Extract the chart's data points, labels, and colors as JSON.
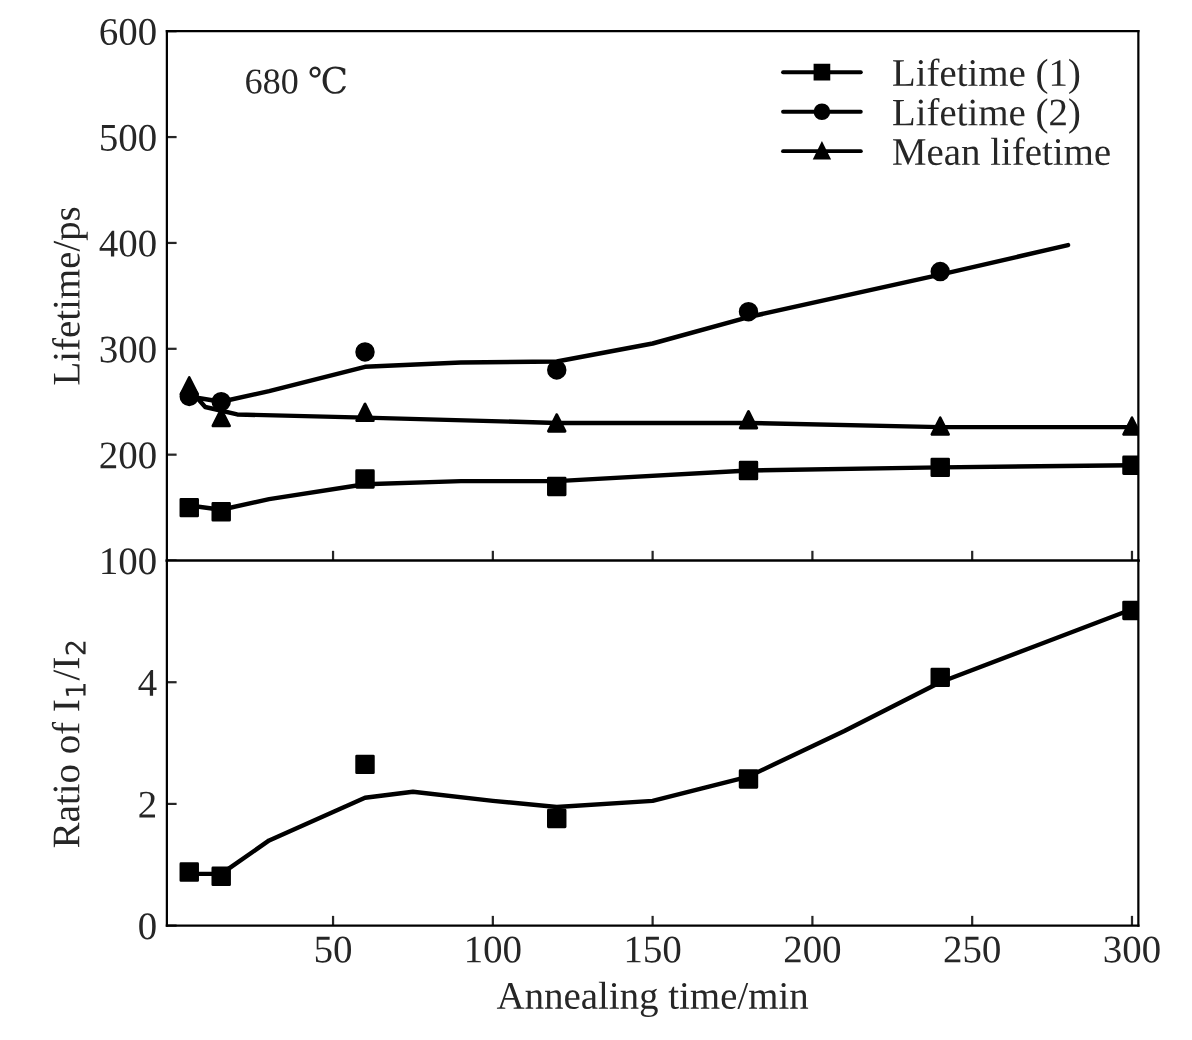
{
  "chart_data": [
    {
      "type": "scatter",
      "ylabel": "Lifetime/ps",
      "annotations": [
        "680 ℃"
      ],
      "xlim": [
        -2,
        302
      ],
      "xticks": [
        50,
        100,
        150,
        200,
        250,
        300
      ],
      "ylim": [
        100,
        600
      ],
      "yticks": [
        100,
        200,
        300,
        400,
        500,
        600
      ],
      "tick_labels": "y",
      "legend": "top right",
      "grid": false,
      "series": [
        {
          "name": "Lifetime (1)",
          "marker": "square",
          "color": "#000000",
          "x": [
            5,
            15,
            60,
            120,
            180,
            240,
            300
          ],
          "values": [
            150,
            146,
            177,
            170,
            185,
            188,
            190
          ]
        },
        {
          "name": "Lifetime (2)",
          "marker": "circle",
          "color": "#000000",
          "x": [
            5,
            15,
            60,
            120,
            180,
            240
          ],
          "values": [
            255,
            250,
            297,
            280,
            335,
            373
          ]
        },
        {
          "name": "Mean lifetime",
          "marker": "triangle",
          "color": "#000000",
          "x": [
            5,
            15,
            60,
            120,
            180,
            240,
            300
          ],
          "values": [
            265,
            235,
            240,
            230,
            233,
            227,
            227
          ]
        },
        {
          "type": "line",
          "marker": "none",
          "line_style": "solid",
          "color": "#000000",
          "x": [
            5,
            15,
            30,
            60,
            90,
            120,
            180,
            240,
            300
          ],
          "values": [
            152,
            148,
            158,
            172,
            175,
            175,
            185,
            188,
            190
          ]
        },
        {
          "type": "line",
          "marker": "none",
          "line_style": "solid",
          "color": "#000000",
          "x": [
            5,
            15,
            30,
            60,
            90,
            120,
            150,
            180,
            240,
            280
          ],
          "values": [
            255,
            250,
            260,
            283,
            287,
            288,
            305,
            330,
            370,
            398
          ]
        },
        {
          "type": "line",
          "marker": "none",
          "line_style": "solid",
          "color": "#000000",
          "x": [
            5,
            10,
            20,
            60,
            120,
            180,
            240,
            300
          ],
          "values": [
            262,
            245,
            238,
            235,
            230,
            230,
            226,
            226
          ]
        }
      ]
    },
    {
      "type": "scatter",
      "xlabel": "Annealing time/min",
      "ylabel": "Ratio of I$_{1}$/I$_{2}$",
      "xlim": [
        -2,
        302
      ],
      "xticks": [
        50,
        100,
        150,
        200,
        250,
        300
      ],
      "ylim": [
        0,
        6
      ],
      "yticks": [
        0,
        2,
        4
      ],
      "grid": false,
      "legend": false,
      "series": [
        {
          "marker": "square",
          "color": "#000000",
          "x": [
            5,
            15,
            60,
            120,
            180,
            240,
            300
          ],
          "values": [
            0.88,
            0.81,
            2.65,
            1.76,
            2.41,
            4.08,
            5.18
          ]
        },
        {
          "type": "line",
          "marker": "none",
          "line_style": "solid",
          "color": "#000000",
          "x": [
            5,
            15,
            30,
            60,
            75,
            100,
            120,
            150,
            180,
            210,
            240,
            270,
            300
          ],
          "values": [
            0.85,
            0.85,
            1.4,
            2.1,
            2.2,
            2.05,
            1.95,
            2.05,
            2.45,
            3.2,
            4.0,
            4.6,
            5.2
          ]
        }
      ]
    }
  ]
}
